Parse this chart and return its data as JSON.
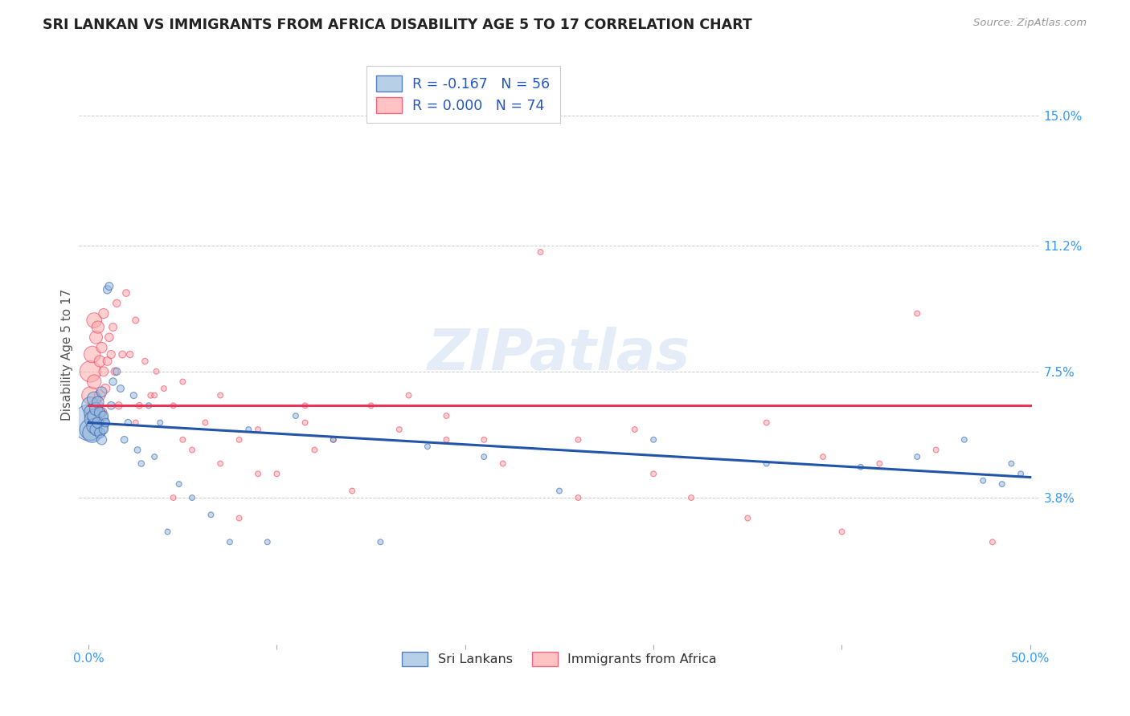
{
  "title": "SRI LANKAN VS IMMIGRANTS FROM AFRICA DISABILITY AGE 5 TO 17 CORRELATION CHART",
  "source": "Source: ZipAtlas.com",
  "ylabel": "Disability Age 5 to 17",
  "xlim": [
    -0.005,
    0.505
  ],
  "ylim": [
    -0.005,
    0.165
  ],
  "xtick_positions": [
    0.0,
    0.1,
    0.2,
    0.3,
    0.4,
    0.5
  ],
  "xticklabels": [
    "0.0%",
    "",
    "",
    "",
    "",
    "50.0%"
  ],
  "ytick_positions": [
    0.038,
    0.075,
    0.112,
    0.15
  ],
  "ytick_labels": [
    "3.8%",
    "7.5%",
    "11.2%",
    "15.0%"
  ],
  "watermark": "ZIPatlas",
  "color_blue": "#99bbdd",
  "color_pink": "#ffaaaa",
  "line_blue": "#2255aa",
  "line_pink": "#ee3355",
  "sl_trend_x0": 0.0,
  "sl_trend_y0": 0.06,
  "sl_trend_x1": 0.5,
  "sl_trend_y1": 0.044,
  "af_trend_x0": 0.0,
  "af_trend_y0": 0.065,
  "af_trend_x1": 0.5,
  "af_trend_y1": 0.065,
  "sri_lankans_x": [
    0.001,
    0.001,
    0.001,
    0.002,
    0.002,
    0.002,
    0.003,
    0.003,
    0.003,
    0.004,
    0.004,
    0.005,
    0.005,
    0.006,
    0.006,
    0.007,
    0.007,
    0.008,
    0.008,
    0.009,
    0.01,
    0.011,
    0.012,
    0.013,
    0.015,
    0.017,
    0.019,
    0.021,
    0.024,
    0.026,
    0.028,
    0.032,
    0.035,
    0.038,
    0.042,
    0.048,
    0.055,
    0.065,
    0.075,
    0.085,
    0.095,
    0.11,
    0.13,
    0.155,
    0.18,
    0.21,
    0.25,
    0.3,
    0.36,
    0.41,
    0.44,
    0.465,
    0.475,
    0.485,
    0.49,
    0.495
  ],
  "sri_lankans_y": [
    0.06,
    0.058,
    0.065,
    0.057,
    0.063,
    0.061,
    0.059,
    0.067,
    0.062,
    0.064,
    0.058,
    0.066,
    0.06,
    0.063,
    0.057,
    0.069,
    0.055,
    0.062,
    0.058,
    0.06,
    0.099,
    0.1,
    0.065,
    0.072,
    0.075,
    0.07,
    0.055,
    0.06,
    0.068,
    0.052,
    0.048,
    0.065,
    0.05,
    0.06,
    0.028,
    0.042,
    0.038,
    0.033,
    0.025,
    0.058,
    0.025,
    0.062,
    0.055,
    0.025,
    0.053,
    0.05,
    0.04,
    0.055,
    0.048,
    0.047,
    0.05,
    0.055,
    0.043,
    0.042,
    0.048,
    0.045
  ],
  "sri_lankans_size": [
    900,
    300,
    200,
    250,
    180,
    160,
    150,
    130,
    120,
    110,
    100,
    90,
    85,
    80,
    75,
    70,
    65,
    60,
    55,
    50,
    45,
    42,
    40,
    38,
    36,
    34,
    32,
    30,
    28,
    26,
    24,
    22,
    20,
    20,
    20,
    20,
    20,
    20,
    20,
    20,
    20,
    20,
    20,
    20,
    20,
    20,
    20,
    20,
    20,
    20,
    20,
    20,
    20,
    20,
    20,
    20
  ],
  "africa_x": [
    0.001,
    0.001,
    0.002,
    0.002,
    0.003,
    0.003,
    0.004,
    0.004,
    0.005,
    0.005,
    0.006,
    0.006,
    0.007,
    0.007,
    0.008,
    0.008,
    0.009,
    0.01,
    0.011,
    0.012,
    0.013,
    0.014,
    0.015,
    0.016,
    0.018,
    0.02,
    0.022,
    0.025,
    0.027,
    0.03,
    0.033,
    0.036,
    0.04,
    0.045,
    0.05,
    0.055,
    0.062,
    0.07,
    0.08,
    0.09,
    0.1,
    0.115,
    0.13,
    0.15,
    0.17,
    0.19,
    0.21,
    0.24,
    0.26,
    0.29,
    0.32,
    0.36,
    0.39,
    0.42,
    0.45,
    0.48,
    0.025,
    0.035,
    0.05,
    0.07,
    0.09,
    0.115,
    0.14,
    0.165,
    0.19,
    0.22,
    0.26,
    0.3,
    0.35,
    0.4,
    0.44,
    0.12,
    0.08,
    0.045
  ],
  "africa_y": [
    0.075,
    0.068,
    0.08,
    0.062,
    0.09,
    0.072,
    0.065,
    0.085,
    0.088,
    0.06,
    0.078,
    0.068,
    0.082,
    0.063,
    0.092,
    0.075,
    0.07,
    0.078,
    0.085,
    0.08,
    0.088,
    0.075,
    0.095,
    0.065,
    0.08,
    0.098,
    0.08,
    0.09,
    0.065,
    0.078,
    0.068,
    0.075,
    0.07,
    0.065,
    0.072,
    0.052,
    0.06,
    0.068,
    0.055,
    0.058,
    0.045,
    0.065,
    0.055,
    0.065,
    0.068,
    0.062,
    0.055,
    0.11,
    0.055,
    0.058,
    0.038,
    0.06,
    0.05,
    0.048,
    0.052,
    0.025,
    0.06,
    0.068,
    0.055,
    0.048,
    0.045,
    0.06,
    0.04,
    0.058,
    0.055,
    0.048,
    0.038,
    0.045,
    0.032,
    0.028,
    0.092,
    0.052,
    0.032,
    0.038
  ],
  "africa_size": [
    300,
    200,
    180,
    160,
    150,
    130,
    120,
    110,
    100,
    90,
    85,
    80,
    75,
    70,
    65,
    60,
    55,
    50,
    48,
    45,
    42,
    40,
    38,
    36,
    34,
    32,
    30,
    28,
    26,
    24,
    22,
    20,
    20,
    20,
    20,
    20,
    20,
    20,
    20,
    20,
    20,
    20,
    20,
    20,
    20,
    20,
    20,
    20,
    20,
    20,
    20,
    20,
    20,
    20,
    20,
    20,
    20,
    20,
    20,
    20,
    20,
    20,
    20,
    20,
    20,
    20,
    20,
    20,
    20,
    20,
    20,
    20,
    20,
    20
  ]
}
